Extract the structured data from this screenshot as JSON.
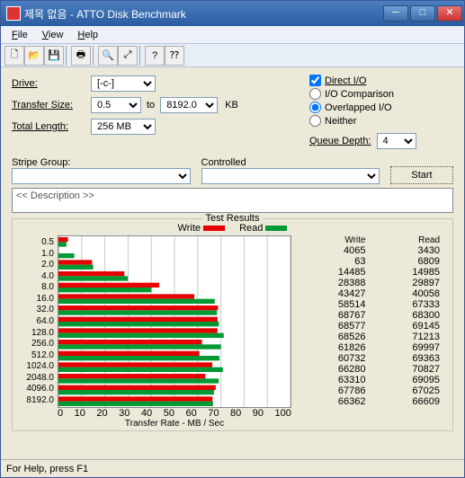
{
  "window": {
    "title": "제목 없음 - ATTO Disk Benchmark"
  },
  "menu": {
    "file": "File",
    "view": "View",
    "help": "Help"
  },
  "labels": {
    "drive": "Drive:",
    "transferSize": "Transfer Size:",
    "to": "to",
    "kb": "KB",
    "totalLength": "Total Length:",
    "directIO": "Direct I/O",
    "ioCompare": "I/O Comparison",
    "overlapped": "Overlapped I/O",
    "neither": "Neither",
    "queueDepth": "Queue Depth:",
    "stripeGroup": "Stripe Group:",
    "controlled": "Controlled",
    "start": "Start",
    "description": "<< Description >>",
    "testResults": "Test Results",
    "write": "Write",
    "read": "Read",
    "xaxis": "Transfer Rate - MB / Sec",
    "status": "For Help, press F1"
  },
  "values": {
    "drive": "[-c-]",
    "sizeFrom": "0.5",
    "sizeTo": "8192.0",
    "totalLength": "256 MB",
    "queueDepth": "4"
  },
  "chart": {
    "xmax": 100,
    "xtick": 10,
    "colors": {
      "write": "#e60000",
      "read": "#009933",
      "grid": "#c8c8c8",
      "bg": "#ffffff"
    },
    "series": [
      {
        "label": "0.5",
        "write": 4065,
        "read": 3430
      },
      {
        "label": "1.0",
        "write": 63,
        "read": 6809
      },
      {
        "label": "2.0",
        "write": 14485,
        "read": 14985
      },
      {
        "label": "4.0",
        "write": 28388,
        "read": 29897
      },
      {
        "label": "8.0",
        "write": 43427,
        "read": 40058
      },
      {
        "label": "16.0",
        "write": 58514,
        "read": 67333
      },
      {
        "label": "32.0",
        "write": 68767,
        "read": 68300
      },
      {
        "label": "64.0",
        "write": 68577,
        "read": 69145
      },
      {
        "label": "128.0",
        "write": 68526,
        "read": 71213
      },
      {
        "label": "256.0",
        "write": 61826,
        "read": 69997
      },
      {
        "label": "512.0",
        "write": 60732,
        "read": 69363
      },
      {
        "label": "1024.0",
        "write": 66280,
        "read": 70827
      },
      {
        "label": "2048.0",
        "write": 63310,
        "read": 69095
      },
      {
        "label": "4096.0",
        "write": 67786,
        "read": 67025
      },
      {
        "label": "8192.0",
        "write": 66362,
        "read": 66609
      }
    ]
  }
}
